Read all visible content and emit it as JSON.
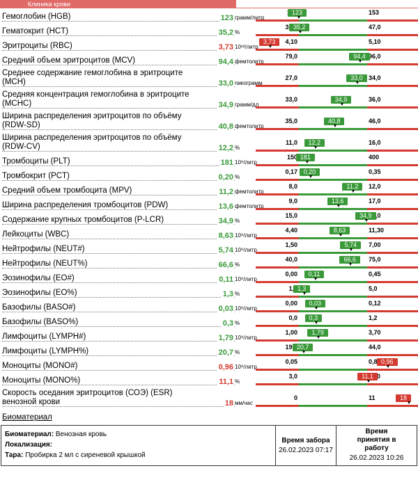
{
  "tab_label": "Клиника крови",
  "rows": [
    {
      "name": "Гемоглобин (HGB)",
      "value": "123",
      "unit": "грамм/литр",
      "lo": "123",
      "hi": "153",
      "status": "normal",
      "pos": 0.0,
      "lines": 1
    },
    {
      "name": "Гематокрит (HCT)",
      "value": "35,2",
      "unit": "%",
      "lo": "35,0",
      "hi": "47,0",
      "status": "normal",
      "pos": 0.02,
      "lines": 1
    },
    {
      "name": "Эритроциты (RBC)",
      "value": "3,73",
      "unit": "10¹²/литр",
      "lo": "4,10",
      "hi": "5,10",
      "status": "low",
      "pos": -0.35,
      "lines": 1
    },
    {
      "name": "Средний объем эритроцитов (MCV)",
      "value": "94,4",
      "unit": "фемтолитр",
      "lo": "79,0",
      "hi": "96,0",
      "status": "normal",
      "pos": 0.9,
      "lines": 1
    },
    {
      "name": "Среднее содержание гемоглобина в эритроците (MCH)",
      "value": "33,0",
      "unit": "пикограмм",
      "lo": "27,0",
      "hi": "34,0",
      "status": "normal",
      "pos": 0.86,
      "lines": 2
    },
    {
      "name": "Средняя концентрация гемоглобина в эритроците (MCHC)",
      "value": "34,9",
      "unit": "грамм/дл",
      "lo": "33,0",
      "hi": "36,0",
      "status": "normal",
      "pos": 0.63,
      "lines": 2
    },
    {
      "name": "Ширина распределения эритроцитов по объёму (RDW-SD)",
      "value": "40,8",
      "unit": "фемтолитр",
      "lo": "35,0",
      "hi": "46,0",
      "status": "normal",
      "pos": 0.53,
      "lines": 2
    },
    {
      "name": "Ширина распределения эритроцитов по объёму (RDW-CV)",
      "value": "12,2",
      "unit": "%",
      "lo": "11,0",
      "hi": "16,0",
      "status": "normal",
      "pos": 0.24,
      "lines": 2
    },
    {
      "name": "Тромбоциты (PLT)",
      "value": "181",
      "unit": "10⁹/литр",
      "lo": "150",
      "hi": "400",
      "status": "normal",
      "pos": 0.12,
      "lines": 1
    },
    {
      "name": "Тромбокрит (PCT)",
      "value": "0,20",
      "unit": "%",
      "lo": "0,17",
      "hi": "0,35",
      "status": "normal",
      "pos": 0.17,
      "lines": 1
    },
    {
      "name": "Средний объем тромбоцита (MPV)",
      "value": "11,2",
      "unit": "фемтолитр",
      "lo": "8,0",
      "hi": "12,0",
      "status": "normal",
      "pos": 0.8,
      "lines": 1
    },
    {
      "name": "Ширина распределения тромбоцитов (PDW)",
      "value": "13,6",
      "unit": "фемтолитр",
      "lo": "9,0",
      "hi": "17,0",
      "status": "normal",
      "pos": 0.58,
      "lines": 1
    },
    {
      "name": "Содержание крупных тромбоцитов (P-LCR)",
      "value": "34,9",
      "unit": "%",
      "lo": "15,0",
      "hi": "35,0",
      "status": "normal",
      "pos": 0.99,
      "lines": 1
    },
    {
      "name": "Лейкоциты (WBC)",
      "value": "8,63",
      "unit": "10⁹/литр",
      "lo": "4,40",
      "hi": "11,30",
      "status": "normal",
      "pos": 0.61,
      "lines": 1
    },
    {
      "name": "Нейтрофилы (NEUT#)",
      "value": "5,74",
      "unit": "10⁹/литр",
      "lo": "1,50",
      "hi": "7,00",
      "status": "normal",
      "pos": 0.77,
      "lines": 1
    },
    {
      "name": "Нейтрофилы (NEUT%)",
      "value": "66,6",
      "unit": "%",
      "lo": "40,0",
      "hi": "75,0",
      "status": "normal",
      "pos": 0.76,
      "lines": 1
    },
    {
      "name": "Эозинофилы (EO#)",
      "value": "0,11",
      "unit": "10⁹/литр",
      "lo": "0,00",
      "hi": "0,45",
      "status": "normal",
      "pos": 0.24,
      "lines": 1
    },
    {
      "name": "Эозинофилы (EO%)",
      "value": "1,3",
      "unit": "%",
      "lo": "1,0",
      "hi": "5,0",
      "status": "normal",
      "pos": 0.08,
      "lines": 1
    },
    {
      "name": "Базофилы (BASO#)",
      "value": "0,03",
      "unit": "10⁹/литр",
      "lo": "0,00",
      "hi": "0,12",
      "status": "normal",
      "pos": 0.25,
      "lines": 1
    },
    {
      "name": "Базофилы (BASO%)",
      "value": "0,3",
      "unit": "%",
      "lo": "0,0",
      "hi": "1,2",
      "status": "normal",
      "pos": 0.25,
      "lines": 1
    },
    {
      "name": "Лимфоциты (LYMPH#)",
      "value": "1,79",
      "unit": "10⁹/литр",
      "lo": "1,00",
      "hi": "3,70",
      "status": "normal",
      "pos": 0.29,
      "lines": 1
    },
    {
      "name": "Лимфоциты (LYMPH%)",
      "value": "20,7",
      "unit": "%",
      "lo": "19,0",
      "hi": "44,0",
      "status": "normal",
      "pos": 0.07,
      "lines": 1
    },
    {
      "name": "Моноциты (MONO#)",
      "value": "0,96",
      "unit": "10⁹/литр",
      "lo": "0,05",
      "hi": "0,80",
      "status": "high",
      "pos": 1.3,
      "lines": 1
    },
    {
      "name": "Моноциты (MONO%)",
      "value": "11,1",
      "unit": "%",
      "lo": "3,0",
      "hi": "11,0",
      "status": "high",
      "pos": 1.02,
      "lines": 1
    },
    {
      "name": "Скорость оседания эритроцитов (СОЭ) (ESR) венозной крови",
      "value": "18",
      "unit": "мм/час",
      "lo": "0",
      "hi": "11",
      "status": "high",
      "pos": 1.6,
      "lines": 2
    }
  ],
  "biomaterial": {
    "title": "Биоматериал",
    "material_label": "Биоматериал:",
    "material_value": "Венозная кровь",
    "location_label": "Локализация:",
    "location_value": "",
    "tube_label": "Тара:",
    "tube_value": "Пробирка 2 мл с сиреневой крышкой",
    "collected_header": "Время забора",
    "collected_value": "26.02.2023 07:17",
    "received_header": "Время принятия в работу",
    "received_value": "26.02.2023 10:26"
  },
  "colors": {
    "normal": "#3a9a3a",
    "abnormal": "#d43a2f",
    "range_bar": "#3a9a3a",
    "out_bar": "#d43a2f"
  }
}
